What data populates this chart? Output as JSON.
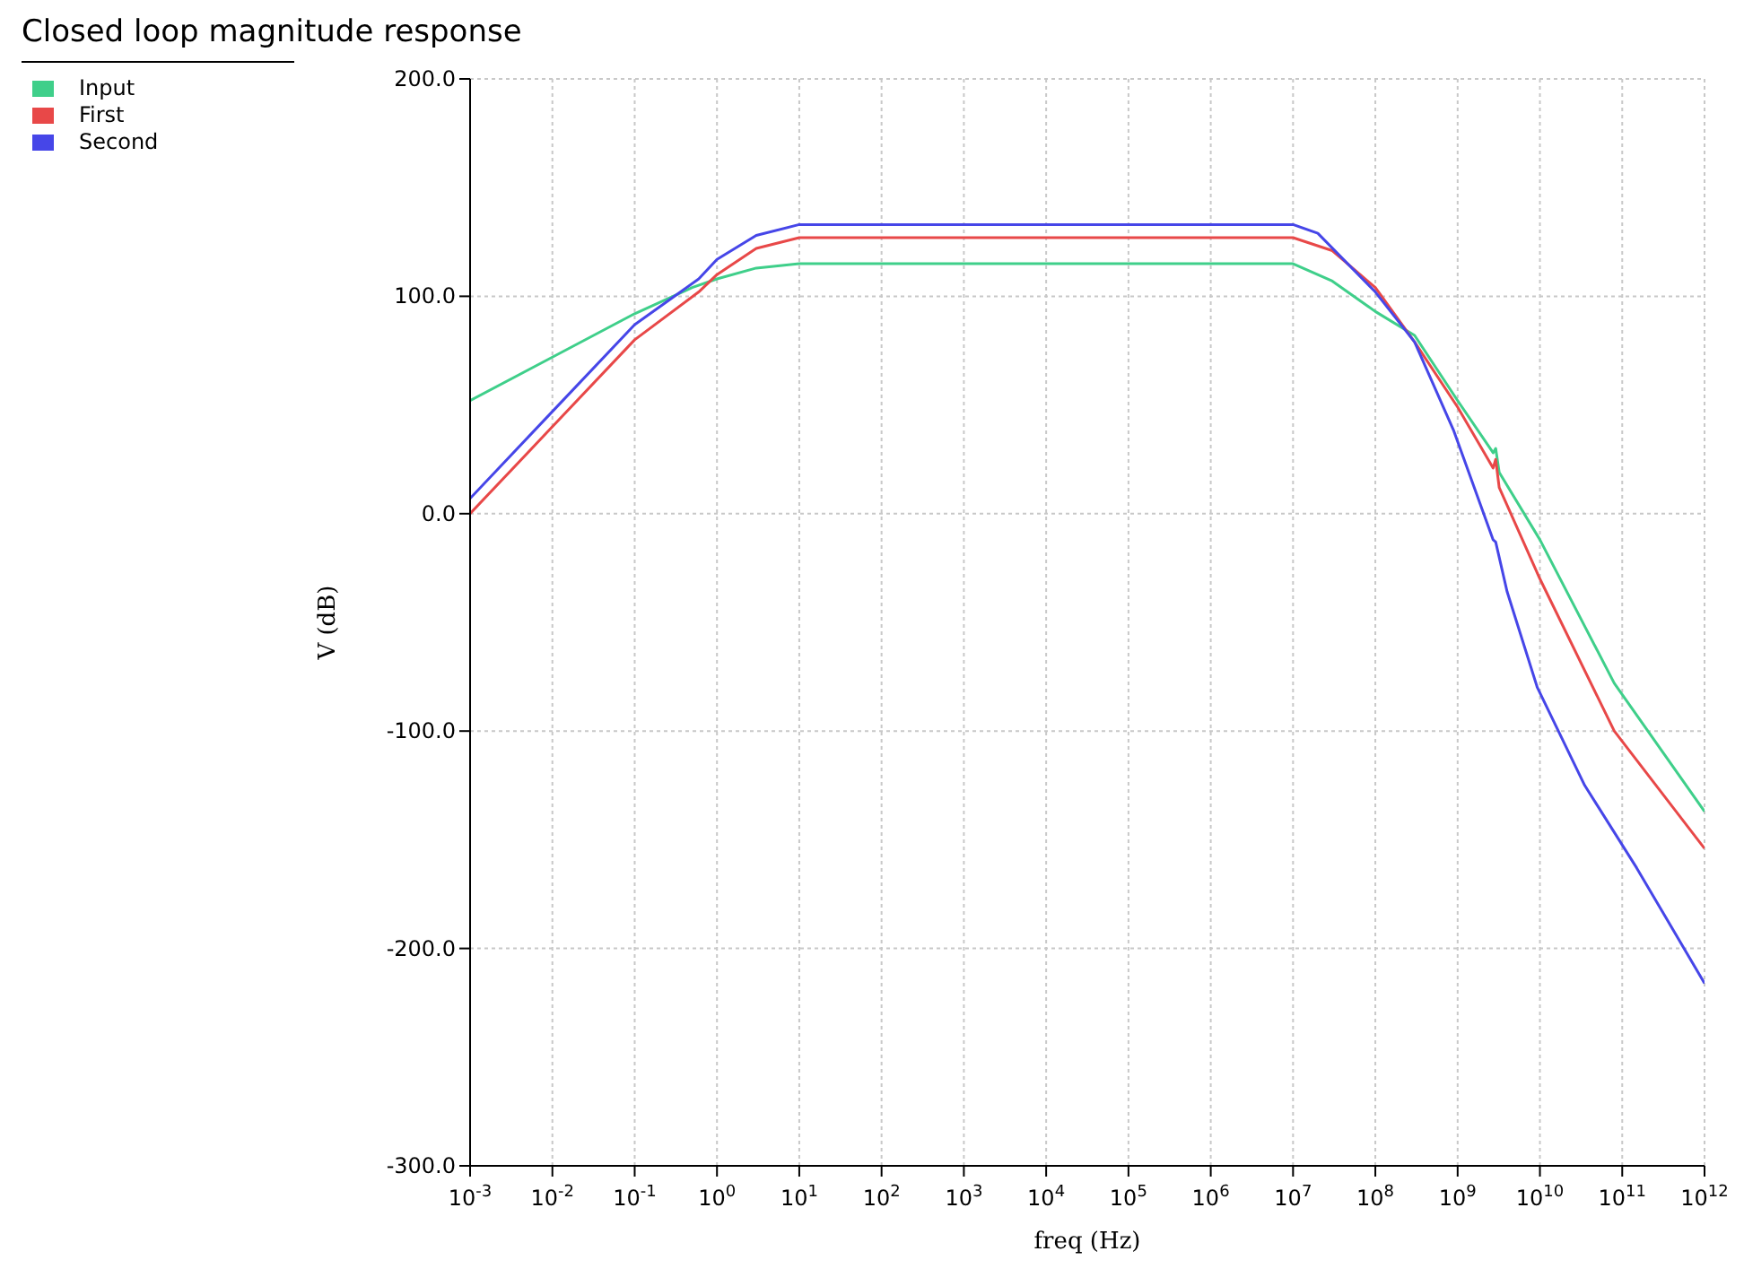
{
  "chart_data": {
    "type": "line",
    "title": "Closed loop magnitude response",
    "xlabel": "freq (Hz)",
    "ylabel": "V (dB)",
    "log": "x",
    "xlim": [
      0.001,
      1000000000000
    ],
    "ylim": [
      -300,
      200
    ],
    "xticks": [
      {
        "value": 0.001,
        "label": "10$^{-3}$"
      },
      {
        "value": 0.01,
        "label": "10$^{-2}$"
      },
      {
        "value": 0.1,
        "label": "10$^{-1}$"
      },
      {
        "value": 1,
        "label": "10$^{0}$"
      },
      {
        "value": 10,
        "label": "10$^{1}$"
      },
      {
        "value": 100,
        "label": "10$^{2}$"
      },
      {
        "value": 1000,
        "label": "10$^{3}$"
      },
      {
        "value": 10000,
        "label": "10$^{4}$"
      },
      {
        "value": 100000,
        "label": "10$^{5}$"
      },
      {
        "value": 1000000,
        "label": "10$^{6}$"
      },
      {
        "value": 10000000,
        "label": "10$^{7}$"
      },
      {
        "value": 100000000,
        "label": "10$^{8}$"
      },
      {
        "value": 1000000000,
        "label": "10$^{9}$"
      },
      {
        "value": 10000000000,
        "label": "10$^{10}$"
      },
      {
        "value": 100000000000,
        "label": "10$^{11}$"
      },
      {
        "value": 1000000000000,
        "label": "10$^{12}$"
      }
    ],
    "yticks": [
      {
        "value": 200,
        "label": "200.0"
      },
      {
        "value": 100,
        "label": "100.0"
      },
      {
        "value": 0,
        "label": "0.0"
      },
      {
        "value": -100,
        "label": "-100.0"
      },
      {
        "value": -200,
        "label": "-200.0"
      },
      {
        "value": -300,
        "label": "-300.0"
      }
    ],
    "grid": true,
    "legend": "top left",
    "marker": "none",
    "line_style": "solid",
    "series": [
      {
        "name": "Input",
        "color": "#3fcf8a",
        "x": [
          0.001,
          0.01,
          0.1,
          0.5,
          1,
          3,
          10,
          10000000,
          30000000,
          100000000,
          300000000,
          1000000000,
          2700000000,
          2900000000,
          3200000000,
          10000000000,
          80000000000,
          1000000000000
        ],
        "values": [
          52,
          72,
          92,
          104,
          108,
          113,
          115,
          115,
          107,
          93,
          82,
          52,
          28,
          30,
          19,
          -12,
          -78,
          -137
        ]
      },
      {
        "name": "First",
        "color": "#e84848",
        "x": [
          0.001,
          0.01,
          0.1,
          0.6,
          1,
          3,
          10,
          10000000,
          30000000,
          100000000,
          300000000,
          1000000000,
          2700000000,
          2900000000,
          3200000000,
          10000000000,
          80000000000,
          1000000000000
        ],
        "values": [
          0,
          40,
          80,
          102,
          110,
          122,
          127,
          127,
          121,
          104,
          79,
          49,
          21,
          25,
          12,
          -30,
          -100,
          -154
        ]
      },
      {
        "name": "Second",
        "color": "#4646e8",
        "x": [
          0.001,
          0.01,
          0.1,
          0.6,
          1,
          3,
          10,
          10000000,
          20000000,
          100000000,
          300000000,
          900000000,
          2700000000,
          2900000000,
          4000000000,
          9300000000,
          35000000000,
          150000000000,
          1000000000000
        ],
        "values": [
          7,
          47,
          87,
          108,
          117,
          128,
          133,
          133,
          129,
          102,
          79,
          38,
          -12,
          -13,
          -36,
          -80,
          -125,
          -163,
          -216
        ]
      }
    ]
  }
}
